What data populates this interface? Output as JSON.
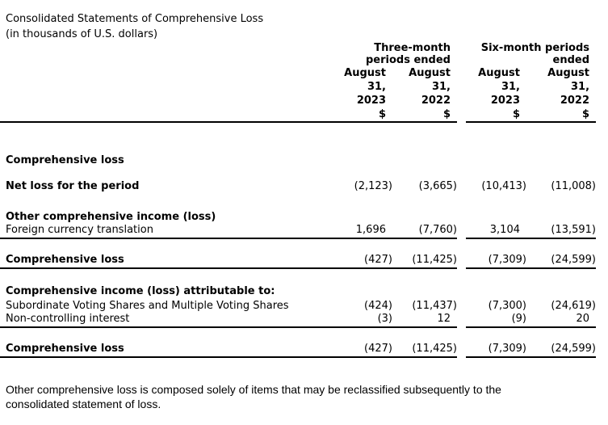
{
  "document": {
    "title": "Consolidated Statements of Comprehensive Loss",
    "subtitle": "(in thousands of U.S. dollars)"
  },
  "table": {
    "period_groups": [
      {
        "line1": "Three-month",
        "line2": "periods ended"
      },
      {
        "line1": "Six-month periods",
        "line2": "ended"
      }
    ],
    "columns": [
      {
        "month": "August",
        "day": "31,",
        "year": "2023",
        "currency": "$"
      },
      {
        "month": "August",
        "day": "31,",
        "year": "2022",
        "currency": "$"
      },
      {
        "month": "August",
        "day": "31,",
        "year": "2023",
        "currency": "$"
      },
      {
        "month": "August",
        "day": "31,",
        "year": "2022",
        "currency": "$"
      }
    ],
    "rows": [
      {
        "label": "Comprehensive loss",
        "values": [
          "",
          "",
          "",
          ""
        ]
      },
      {
        "label": "Net loss for the period",
        "values": [
          "(2,123)",
          "(3,665)",
          "(10,413)",
          "(11,008)"
        ]
      },
      {
        "label": "Other comprehensive income (loss)",
        "values": [
          "",
          "",
          "",
          ""
        ]
      },
      {
        "label": "Foreign currency translation",
        "values": [
          "1,696",
          "(7,760)",
          "3,104",
          "(13,591)"
        ]
      },
      {
        "label": "Comprehensive loss",
        "values": [
          "(427)",
          "(11,425)",
          "(7,309)",
          "(24,599)"
        ]
      },
      {
        "label": "Comprehensive income (loss) attributable to:",
        "values": [
          "",
          "",
          "",
          ""
        ]
      },
      {
        "label": "Subordinate Voting Shares and Multiple Voting Shares",
        "values": [
          "(424)",
          "(11,437)",
          "(7,300)",
          "(24,619)"
        ]
      },
      {
        "label": "Non-controlling interest",
        "values": [
          "(3)",
          "12",
          "(9)",
          "20"
        ]
      },
      {
        "label": "Comprehensive loss",
        "values": [
          "(427)",
          "(11,425)",
          "(7,309)",
          "(24,599)"
        ]
      }
    ]
  },
  "footnote": {
    "line1": "Other comprehensive loss is composed solely of items that may be reclassified subsequently to the",
    "line2": "consolidated statement of loss."
  }
}
